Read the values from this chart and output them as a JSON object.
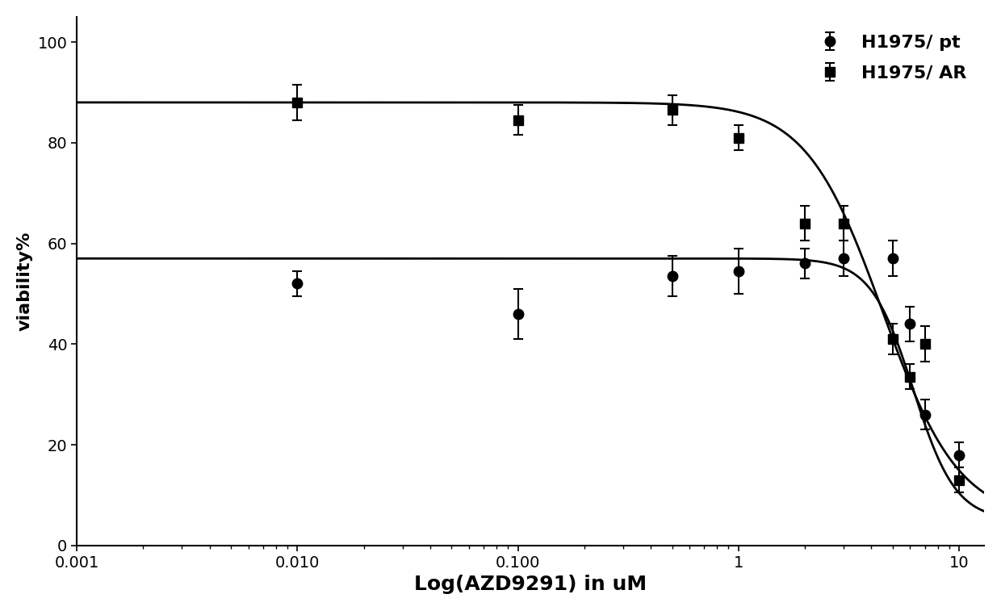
{
  "title": "",
  "xlabel": "Log(AZD9291) in uM",
  "ylabel": "viability%",
  "background_color": "#ffffff",
  "xlim": [
    0.001,
    13
  ],
  "ylim": [
    0,
    105
  ],
  "yticks": [
    0,
    20,
    40,
    60,
    80,
    100
  ],
  "pt_x": [
    0.01,
    0.1,
    0.5,
    1.0,
    2.0,
    3.0,
    5.0,
    6.0,
    7.0,
    10.0
  ],
  "pt_y": [
    52.0,
    46.0,
    53.5,
    54.5,
    56.0,
    57.0,
    57.0,
    44.0,
    26.0,
    18.0
  ],
  "pt_yerr": [
    2.5,
    5.0,
    4.0,
    4.5,
    3.0,
    3.5,
    3.5,
    3.5,
    3.0,
    2.5
  ],
  "ar_x": [
    0.01,
    0.1,
    0.5,
    1.0,
    2.0,
    3.0,
    5.0,
    6.0,
    7.0,
    10.0
  ],
  "ar_y": [
    88.0,
    84.5,
    86.5,
    81.0,
    64.0,
    64.0,
    41.0,
    33.5,
    40.0,
    13.0
  ],
  "ar_yerr": [
    3.5,
    3.0,
    3.0,
    2.5,
    3.5,
    3.5,
    3.0,
    2.5,
    3.5,
    2.5
  ],
  "pt_curve_params": [
    57.0,
    5.0,
    6.2,
    4.5
  ],
  "ar_curve_params": [
    88.0,
    5.0,
    4.5,
    2.5
  ],
  "line_color": "#000000",
  "marker_color": "#000000",
  "marker_pt": "o",
  "marker_ar": "s",
  "marker_size_pt": 9,
  "marker_size_ar": 8,
  "line_width": 2.0,
  "legend_labels": [
    "H1975/ pt",
    "H1975/ AR"
  ],
  "xlabel_fontsize": 18,
  "ylabel_fontsize": 16,
  "tick_fontsize": 14,
  "legend_fontsize": 16
}
